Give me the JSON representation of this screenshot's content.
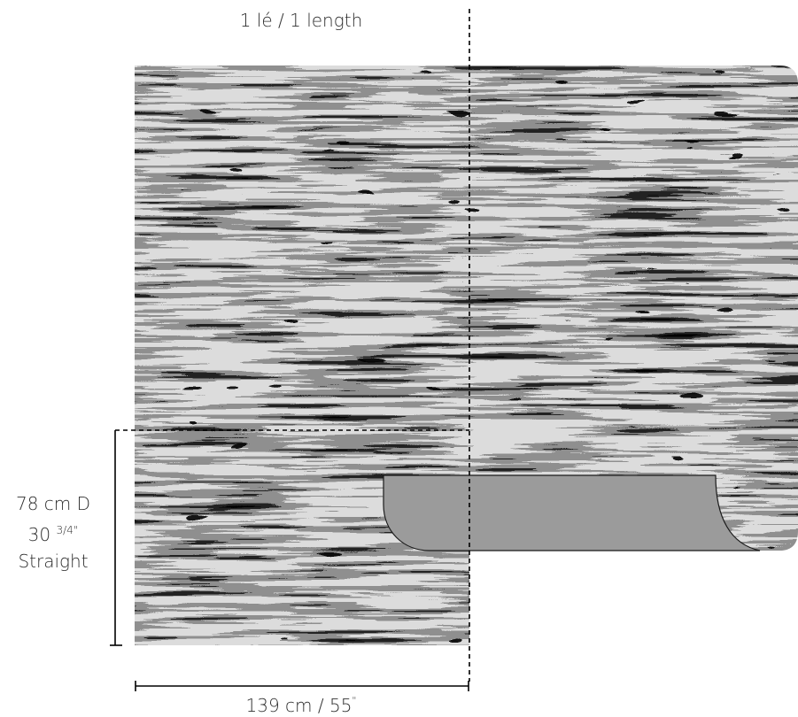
{
  "labels": {
    "repeat": "1 lé / 1 length",
    "width": "139 cm / 55",
    "width_mark": "\"",
    "height_line1": "78 cm D",
    "height_inch_whole": "30",
    "height_inch_fraction": "3/4",
    "height_inch_mark": "\"",
    "height_line3": "Straight"
  },
  "colors": {
    "pattern_light": "#dcdcdc",
    "pattern_dark": "#111111",
    "pattern_mid": "#777777",
    "cut_shape": "#9b9b9b",
    "guide_lines": "#000000"
  }
}
